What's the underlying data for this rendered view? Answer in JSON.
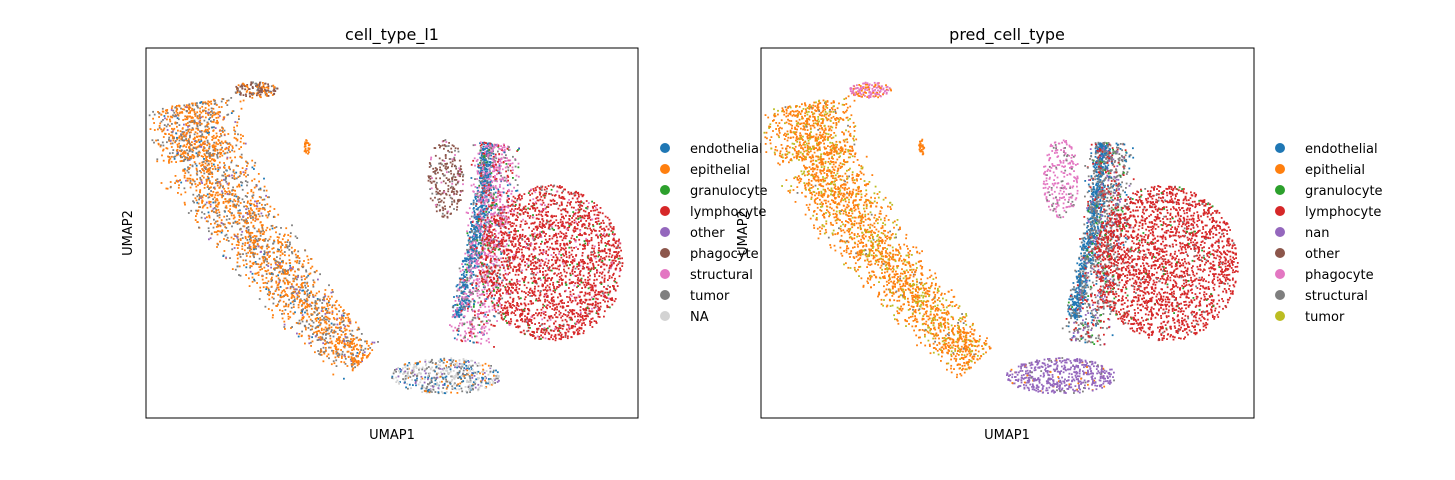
{
  "colors": {
    "blue": "#1f77b4",
    "orange": "#ff7f0e",
    "green": "#2ca02c",
    "red": "#d62728",
    "purple": "#9467bd",
    "brown": "#8c564b",
    "pink": "#e377c2",
    "gray": "#7f7f7f",
    "olive": "#bcbd22",
    "na": "#d3d3d3"
  },
  "chart_data": [
    {
      "type": "scatter",
      "title": "cell_type_l1",
      "xlabel": "UMAP1",
      "ylabel": "UMAP2",
      "grid": false,
      "ticks": false,
      "legend_placement": "right, outside",
      "legend": [
        {
          "label": "endothelial",
          "color": "#1f77b4"
        },
        {
          "label": "epithelial",
          "color": "#ff7f0e"
        },
        {
          "label": "granulocyte",
          "color": "#2ca02c"
        },
        {
          "label": "lymphocyte",
          "color": "#d62728"
        },
        {
          "label": "other",
          "color": "#9467bd"
        },
        {
          "label": "phagocyte",
          "color": "#8c564b"
        },
        {
          "label": "structural",
          "color": "#e377c2"
        },
        {
          "label": "tumor",
          "color": "#7f7f7f"
        },
        {
          "label": "NA",
          "color": "#d3d3d3"
        }
      ],
      "clusters": [
        {
          "category": "epithelial",
          "label": "large arc (left)",
          "mix": {
            "epithelial": 0.62,
            "tumor": 0.28,
            "other": 0.06,
            "endothelial": 0.04
          }
        },
        {
          "category": "phagocyte",
          "label": "top-left tip",
          "mix": {
            "phagocyte": 0.55,
            "epithelial": 0.3,
            "tumor": 0.15
          }
        },
        {
          "category": "epithelial",
          "label": "small isolated blob",
          "mix": {
            "epithelial": 1.0
          }
        },
        {
          "category": "phagocyte",
          "label": "central column",
          "mix": {
            "phagocyte": 0.75,
            "tumor": 0.15,
            "structural": 0.1
          }
        },
        {
          "category": "endothelial",
          "label": "central stripe",
          "mix": {
            "endothelial": 0.75,
            "tumor": 0.15,
            "structural": 0.1
          }
        },
        {
          "category": "structural",
          "label": "middle band",
          "mix": {
            "structural": 0.55,
            "tumor": 0.15,
            "lymphocyte": 0.15,
            "granulocyte": 0.05,
            "endothelial": 0.1
          }
        },
        {
          "category": "lymphocyte",
          "label": "right lobe",
          "mix": {
            "lymphocyte": 0.85,
            "granulocyte": 0.06,
            "structural": 0.06,
            "tumor": 0.03
          }
        },
        {
          "category": "NA",
          "label": "bottom",
          "mix": {
            "na": 0.4,
            "tumor": 0.25,
            "endothelial": 0.15,
            "other": 0.1,
            "epithelial": 0.1
          }
        }
      ]
    },
    {
      "type": "scatter",
      "title": "pred_cell_type",
      "xlabel": "UMAP1",
      "ylabel": "UMAP2",
      "grid": false,
      "ticks": false,
      "legend_placement": "right, outside",
      "legend": [
        {
          "label": "endothelial",
          "color": "#1f77b4"
        },
        {
          "label": "epithelial",
          "color": "#ff7f0e"
        },
        {
          "label": "granulocyte",
          "color": "#2ca02c"
        },
        {
          "label": "lymphocyte",
          "color": "#d62728"
        },
        {
          "label": "nan",
          "color": "#9467bd"
        },
        {
          "label": "other",
          "color": "#8c564b"
        },
        {
          "label": "phagocyte",
          "color": "#e377c2"
        },
        {
          "label": "structural",
          "color": "#7f7f7f"
        },
        {
          "label": "tumor",
          "color": "#bcbd22"
        }
      ],
      "clusters": [
        {
          "category": "epithelial",
          "label": "large arc (left)",
          "mix": {
            "epithelial": 0.78,
            "tumor": 0.2,
            "structural": 0.02
          }
        },
        {
          "category": "phagocyte",
          "label": "top-left tip",
          "mix": {
            "phagocyte": 0.7,
            "epithelial": 0.3
          }
        },
        {
          "category": "epithelial",
          "label": "small isolated blob",
          "mix": {
            "epithelial": 1.0
          }
        },
        {
          "category": "phagocyte",
          "label": "central column",
          "mix": {
            "phagocyte": 0.85,
            "structural": 0.15
          }
        },
        {
          "category": "endothelial",
          "label": "central stripe",
          "mix": {
            "endothelial": 0.8,
            "structural": 0.2
          }
        },
        {
          "category": "structural",
          "label": "middle band",
          "mix": {
            "structural": 0.55,
            "lymphocyte": 0.2,
            "granulocyte": 0.05,
            "endothelial": 0.1,
            "nan": 0.1
          }
        },
        {
          "category": "lymphocyte",
          "label": "right lobe",
          "mix": {
            "lymphocyte": 0.93,
            "structural": 0.04,
            "granulocyte": 0.03
          }
        },
        {
          "category": "nan",
          "label": "bottom",
          "mix": {
            "nan": 0.9,
            "structural": 0.05,
            "epithelial": 0.05
          }
        }
      ]
    }
  ]
}
